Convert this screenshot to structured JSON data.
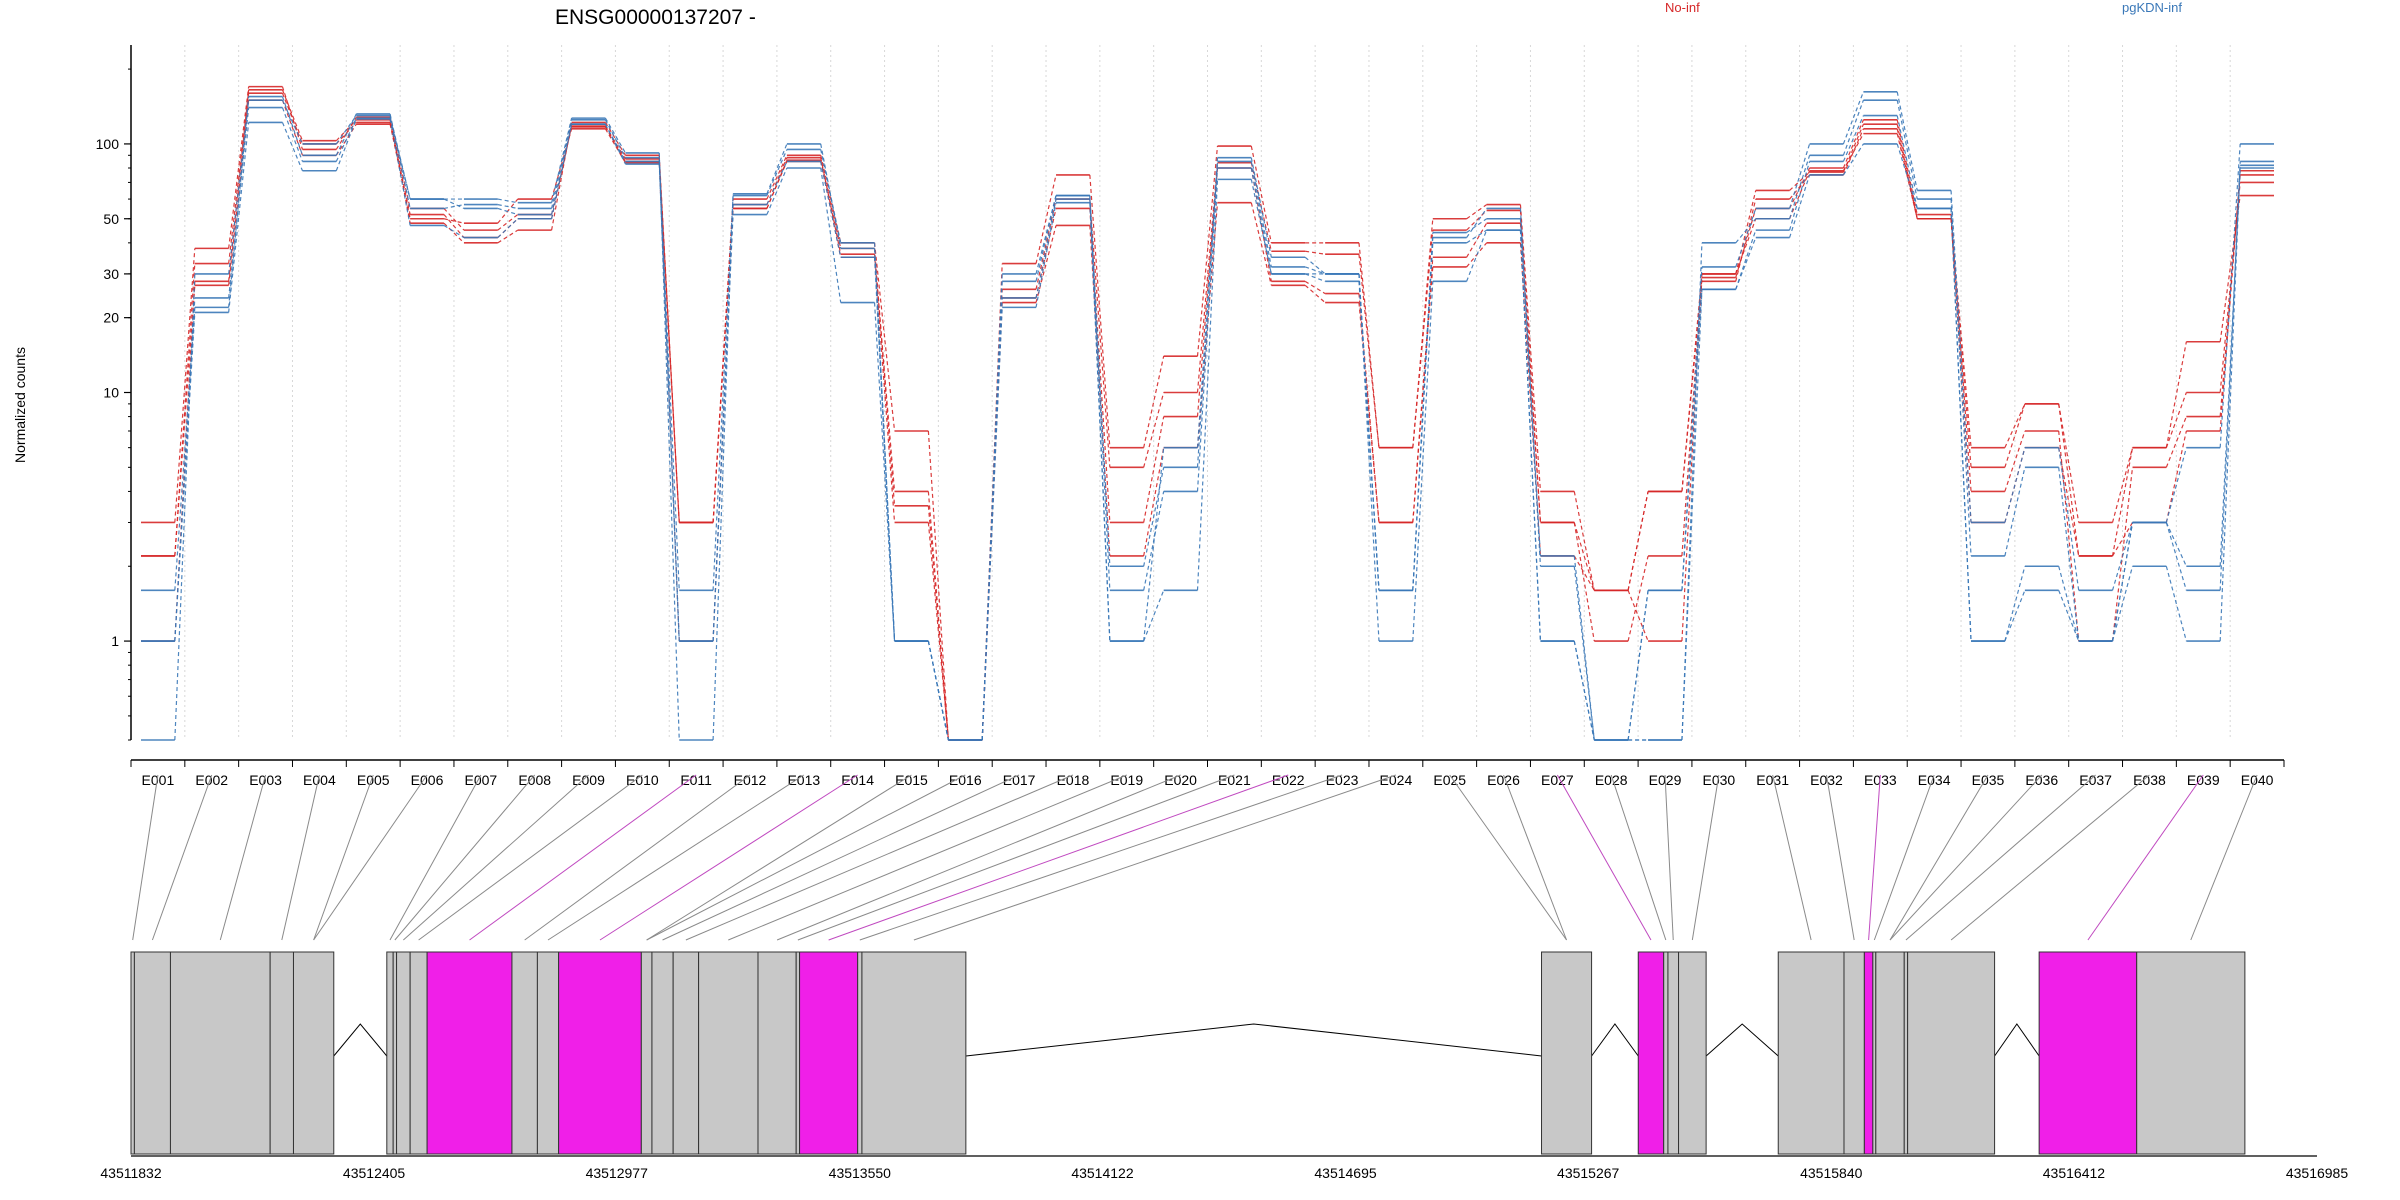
{
  "chart_data": {
    "type": "line",
    "title": "ENSG00000137207 -",
    "ylabel": "Normalized counts",
    "yscale": "log",
    "ylim": [
      0.4,
      250
    ],
    "yticks": [
      1,
      10,
      20,
      30,
      50,
      100
    ],
    "grid": "vertical dotted at exon boundaries",
    "legend": [
      {
        "name": "No-inf",
        "color": "#d62728"
      },
      {
        "name": "pgKDN-inf",
        "color": "#3a78b8"
      }
    ],
    "categories": [
      "E001",
      "E002",
      "E003",
      "E004",
      "E005",
      "E006",
      "E007",
      "E008",
      "E009",
      "E010",
      "E011",
      "E012",
      "E013",
      "E014",
      "E015",
      "E016",
      "E017",
      "E018",
      "E019",
      "E020",
      "E021",
      "E022",
      "E023",
      "E024",
      "E025",
      "E026",
      "E027",
      "E028",
      "E029",
      "E030",
      "E031",
      "E032",
      "E033",
      "E034",
      "E035",
      "E036",
      "E037",
      "E038",
      "E039",
      "E040"
    ],
    "series": [
      {
        "group": "No-inf",
        "values": [
          3.0,
          38,
          170,
          95,
          128,
          48,
          40,
          45,
          122,
          90,
          3.0,
          60,
          90,
          40,
          7,
          0.4,
          33,
          75,
          6,
          14,
          98,
          40,
          40,
          6,
          50,
          57,
          4,
          1.6,
          4,
          30,
          65,
          77,
          120,
          50,
          6,
          9,
          3,
          6,
          16,
          62
        ]
      },
      {
        "group": "No-inf",
        "values": [
          2.2,
          33,
          160,
          100,
          122,
          52,
          42,
          50,
          118,
          87,
          3.0,
          57,
          88,
          36,
          4,
          0.4,
          26,
          60,
          5,
          10,
          84,
          37,
          36,
          6,
          45,
          54,
          3,
          1.6,
          4,
          28,
          60,
          75,
          115,
          50,
          5,
          9,
          2.2,
          6,
          10,
          70
        ]
      },
      {
        "group": "No-inf",
        "values": [
          1.0,
          28,
          165,
          103,
          125,
          55,
          45,
          52,
          117,
          85,
          1.0,
          55,
          86,
          38,
          3.5,
          0.4,
          24,
          55,
          3,
          8,
          80,
          28,
          25,
          3,
          35,
          48,
          3,
          1.0,
          2.2,
          29,
          55,
          80,
          125,
          52,
          4,
          7,
          1.0,
          5,
          8,
          75
        ]
      },
      {
        "group": "No-inf",
        "values": [
          2.2,
          27,
          150,
          90,
          120,
          50,
          48,
          60,
          115,
          84,
          3.0,
          55,
          85,
          35,
          3,
          0.4,
          23,
          47,
          2.2,
          6,
          58,
          27,
          23,
          3,
          32,
          40,
          2.2,
          1.6,
          1.0,
          30,
          50,
          78,
          110,
          50,
          3,
          6,
          2.2,
          3,
          7,
          78
        ]
      },
      {
        "group": "pgKDN-inf",
        "values": [
          0.4,
          30,
          150,
          100,
          130,
          60,
          60,
          58,
          127,
          92,
          0.4,
          63,
          100,
          38,
          1.0,
          0.4,
          30,
          62,
          1.0,
          6,
          88,
          35,
          30,
          1.6,
          44,
          50,
          2.2,
          0.4,
          1.6,
          32,
          55,
          100,
          162,
          65,
          3,
          6,
          1.6,
          3,
          6,
          100
        ]
      },
      {
        "group": "pgKDN-inf",
        "values": [
          1.6,
          22,
          155,
          90,
          132,
          55,
          57,
          55,
          125,
          88,
          1.6,
          62,
          95,
          40,
          1.0,
          0.4,
          28,
          62,
          2,
          5,
          85,
          32,
          30,
          1.6,
          42,
          55,
          2,
          0.4,
          0.4,
          40,
          50,
          90,
          150,
          60,
          2.2,
          5,
          1.0,
          3,
          2,
          80
        ]
      },
      {
        "group": "pgKDN-inf",
        "values": [
          1.0,
          24,
          140,
          85,
          127,
          60,
          55,
          52,
          120,
          85,
          1.0,
          57,
          85,
          35,
          1.0,
          0.4,
          24,
          60,
          1.6,
          4,
          80,
          30,
          28,
          1.6,
          40,
          45,
          1.0,
          0.4,
          0.4,
          26,
          45,
          85,
          130,
          55,
          1,
          2,
          1.0,
          3,
          1.6,
          85
        ]
      },
      {
        "group": "pgKDN-inf",
        "values": [
          1.0,
          21,
          122,
          78,
          126,
          47,
          42,
          50,
          120,
          83,
          1.0,
          52,
          80,
          23,
          1.0,
          0.4,
          22,
          58,
          1.0,
          1.6,
          72,
          30,
          30,
          1.0,
          28,
          45,
          1.0,
          0.4,
          1.6,
          26,
          42,
          75,
          100,
          55,
          1.0,
          1.6,
          1.0,
          2,
          1.0,
          82
        ]
      }
    ],
    "gene_model": {
      "coordinates": [
        "43511832",
        "43512405",
        "43512977",
        "43513550",
        "43514122",
        "43514695",
        "43515267",
        "43515840",
        "43516412",
        "43516985"
      ],
      "exons": [
        {
          "start": 43511832,
          "end": 43511840,
          "highlight": false
        },
        {
          "start": 43511840,
          "end": 43511925,
          "highlight": false
        },
        {
          "start": 43511925,
          "end": 43512160,
          "highlight": false
        },
        {
          "start": 43512160,
          "end": 43512215,
          "highlight": false
        },
        {
          "start": 43512215,
          "end": 43512310,
          "highlight": false
        },
        {
          "start": 43512435,
          "end": 43512450,
          "highlight": false
        },
        {
          "start": 43512450,
          "end": 43512458,
          "highlight": false
        },
        {
          "start": 43512458,
          "end": 43512490,
          "highlight": false
        },
        {
          "start": 43512490,
          "end": 43512530,
          "highlight": false
        },
        {
          "start": 43512530,
          "end": 43512730,
          "highlight": true
        },
        {
          "start": 43512730,
          "end": 43512790,
          "highlight": false
        },
        {
          "start": 43512790,
          "end": 43512840,
          "highlight": false
        },
        {
          "start": 43512840,
          "end": 43513035,
          "highlight": true
        },
        {
          "start": 43513035,
          "end": 43513060,
          "highlight": false
        },
        {
          "start": 43513060,
          "end": 43513110,
          "highlight": false
        },
        {
          "start": 43513110,
          "end": 43513170,
          "highlight": false
        },
        {
          "start": 43513170,
          "end": 43513310,
          "highlight": false
        },
        {
          "start": 43513310,
          "end": 43513400,
          "highlight": false
        },
        {
          "start": 43513400,
          "end": 43513408,
          "highlight": false
        },
        {
          "start": 43513408,
          "end": 43513545,
          "highlight": true
        },
        {
          "start": 43513545,
          "end": 43513555,
          "highlight": false
        },
        {
          "start": 43513555,
          "end": 43513800,
          "highlight": false
        },
        {
          "start": 43515157,
          "end": 43515275,
          "highlight": false
        },
        {
          "start": 43515385,
          "end": 43515445,
          "highlight": true
        },
        {
          "start": 43515445,
          "end": 43515455,
          "highlight": false
        },
        {
          "start": 43515455,
          "end": 43515480,
          "highlight": false
        },
        {
          "start": 43515480,
          "end": 43515545,
          "highlight": false
        },
        {
          "start": 43515715,
          "end": 43515870,
          "highlight": false
        },
        {
          "start": 43515870,
          "end": 43515918,
          "highlight": false
        },
        {
          "start": 43515918,
          "end": 43515938,
          "highlight": true
        },
        {
          "start": 43515938,
          "end": 43515945,
          "highlight": false
        },
        {
          "start": 43515945,
          "end": 43516012,
          "highlight": false
        },
        {
          "start": 43516012,
          "end": 43516020,
          "highlight": false
        },
        {
          "start": 43516020,
          "end": 43516225,
          "highlight": false
        },
        {
          "start": 43516330,
          "end": 43516560,
          "highlight": true
        },
        {
          "start": 43516560,
          "end": 43516815,
          "highlight": false
        }
      ]
    }
  }
}
